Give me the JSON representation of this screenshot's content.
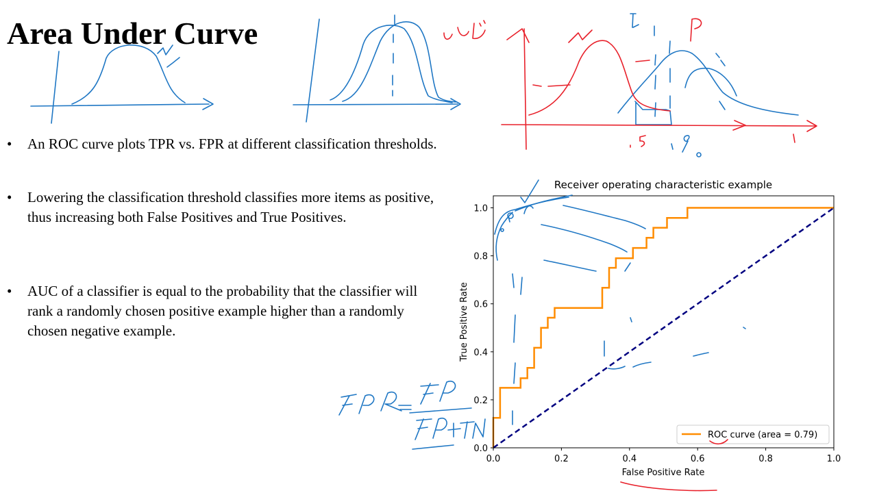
{
  "slide": {
    "title": "Area Under Curve",
    "bullets": [
      "An ROC curve plots TPR vs. FPR at different classification thresholds.",
      "Lowering the classification threshold classifies more items as positive, thus increasing both False Positives and True Positives.",
      "AUC of a classifier is equal to the probability that the classifier will rank a randomly chosen positive example higher than a randomly chosen negative example."
    ]
  },
  "colors": {
    "roc": "#ff8c00",
    "diagonal": "#000080",
    "ink_blue": "#1f77c4",
    "ink_red": "#e8202a"
  },
  "chart_data": {
    "type": "line",
    "title": "Receiver operating characteristic example",
    "xlabel": "False Positive Rate",
    "ylabel": "True Positive Rate",
    "xlim": [
      0,
      1
    ],
    "ylim": [
      0,
      1.05
    ],
    "xticks": [
      0.0,
      0.2,
      0.4,
      0.6,
      0.8,
      1.0
    ],
    "yticks": [
      0.0,
      0.2,
      0.4,
      0.6,
      0.8,
      1.0
    ],
    "grid": false,
    "legend_position": "bottom-right",
    "series": [
      {
        "name": "ROC curve (area = 0.79)",
        "color": "#ff8c00",
        "style": "step",
        "x": [
          0.0,
          0.0,
          0.02,
          0.02,
          0.08,
          0.08,
          0.1,
          0.1,
          0.12,
          0.12,
          0.14,
          0.14,
          0.16,
          0.16,
          0.18,
          0.18,
          0.32,
          0.32,
          0.34,
          0.34,
          0.36,
          0.36,
          0.41,
          0.41,
          0.45,
          0.45,
          0.47,
          0.47,
          0.51,
          0.51,
          0.57,
          0.57,
          1.0
        ],
        "y": [
          0.0,
          0.125,
          0.125,
          0.25,
          0.25,
          0.29,
          0.29,
          0.333,
          0.333,
          0.417,
          0.417,
          0.5,
          0.5,
          0.542,
          0.542,
          0.583,
          0.583,
          0.667,
          0.667,
          0.75,
          0.75,
          0.79,
          0.79,
          0.833,
          0.833,
          0.875,
          0.875,
          0.917,
          0.917,
          0.958,
          0.958,
          1.0,
          1.0
        ]
      },
      {
        "name": "",
        "color": "#000080",
        "style": "dashed",
        "x": [
          0.0,
          1.0
        ],
        "y": [
          0.0,
          1.0
        ]
      }
    ]
  },
  "annotations": {
    "formula_lhs": "FPR = FP",
    "formula_rhs": "FP+TN",
    "red_word": "تعداد",
    "letter_t": "t",
    "letter_p": "p",
    "red_point5": ".5",
    "blue_point9": "٠.٩",
    "red_one": "1"
  }
}
